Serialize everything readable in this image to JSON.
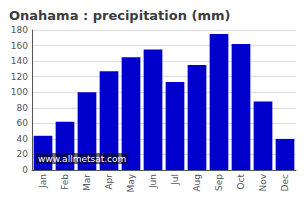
{
  "chart_data": {
    "type": "bar",
    "title": "Onahama : precipitation (mm)",
    "categories": [
      "Jan",
      "Feb",
      "Mar",
      "Apr",
      "May",
      "Jun",
      "Jul",
      "Aug",
      "Sep",
      "Oct",
      "Nov",
      "Dec"
    ],
    "values": [
      44,
      62,
      100,
      127,
      145,
      155,
      113,
      135,
      175,
      162,
      88,
      40
    ],
    "color": "#0000CC",
    "ylim": [
      0,
      180
    ],
    "yticks": [
      0,
      20,
      40,
      60,
      80,
      100,
      120,
      140,
      160,
      180
    ],
    "grid": true,
    "annotations": [
      "www.allmetsat.com"
    ]
  }
}
